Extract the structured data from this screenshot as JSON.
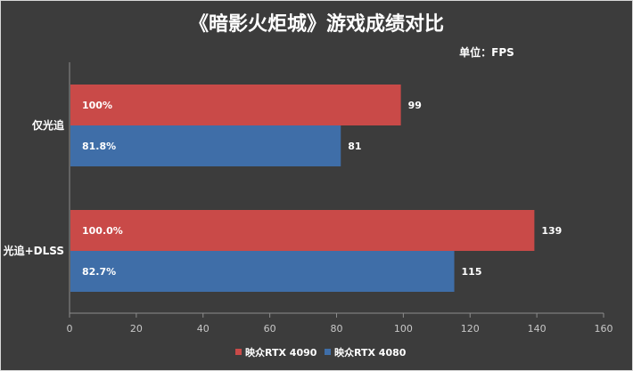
{
  "chart_data": {
    "type": "bar",
    "orientation": "horizontal",
    "title": "《暗影火炬城》游戏成绩对比",
    "unit_label": "单位：FPS",
    "categories": [
      "仅光追",
      "光追+DLSS"
    ],
    "series": [
      {
        "name": "映众RTX 4090",
        "color": "#c94a48",
        "values": [
          99,
          139
        ],
        "percent_labels": [
          "100%",
          "100.0%"
        ]
      },
      {
        "name": "映众RTX 4080",
        "color": "#3f6ea8",
        "values": [
          81,
          115
        ],
        "percent_labels": [
          "81.8%",
          "82.7%"
        ]
      }
    ],
    "xlim": [
      0,
      160
    ],
    "x_ticks": [
      "0",
      "20",
      "40",
      "60",
      "80",
      "100",
      "120",
      "140",
      "160"
    ],
    "grid": false,
    "legend_position": "bottom-center"
  },
  "colors": {
    "background": "#3c3c3c",
    "text": "#ffffff",
    "axis": "#8c8c8c"
  }
}
